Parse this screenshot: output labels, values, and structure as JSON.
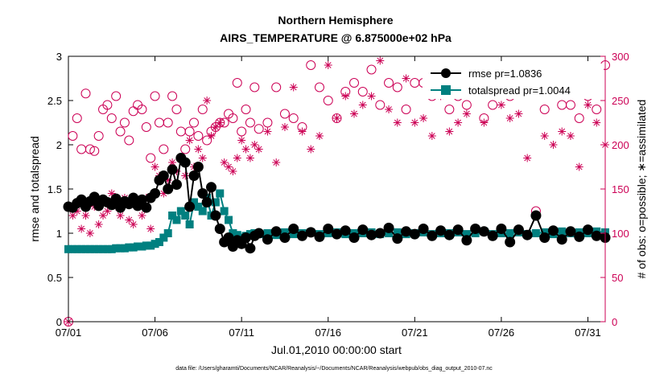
{
  "chart_data": {
    "type": "line",
    "title": "Northern Hemisphere",
    "subtitle": "AIRS_TEMPERATURE @ 6.875000e+02 hPa",
    "xlabel": "Jul.01,2010 00:00:00 start",
    "ylabel": "rmse and totalspread",
    "ylabel_right": "# of obs: o=possible; ∗=assimilated",
    "x_tick_labels": [
      "07/01",
      "07/06",
      "07/11",
      "07/16",
      "07/21",
      "07/26",
      "07/31"
    ],
    "x_ticks_day": [
      1,
      6,
      11,
      16,
      21,
      26,
      31
    ],
    "xlim_day": [
      1,
      32
    ],
    "y_tick_labels": [
      "0",
      "0.5",
      "1",
      "1.5",
      "2",
      "2.5",
      "3"
    ],
    "ylim": [
      0,
      3
    ],
    "y2_tick_labels": [
      "0",
      "50",
      "100",
      "150",
      "200",
      "250",
      "300"
    ],
    "y2lim": [
      0,
      300
    ],
    "grid": false,
    "legend_position": "top-right",
    "colors": {
      "rmse": "#000000",
      "totalspread": "#008080",
      "obs": "#cc0055"
    },
    "series": [
      {
        "name": "rmse pr=1.0836",
        "axis": "left",
        "marker": "filled-circle",
        "x_day": [
          1.0,
          1.25,
          1.5,
          1.75,
          2.0,
          2.25,
          2.5,
          2.75,
          3.0,
          3.25,
          3.5,
          3.75,
          4.0,
          4.25,
          4.5,
          4.75,
          5.0,
          5.25,
          5.5,
          5.75,
          6.0,
          6.25,
          6.5,
          6.75,
          7.0,
          7.25,
          7.5,
          7.75,
          8.0,
          8.25,
          8.5,
          8.75,
          9.0,
          9.25,
          9.5,
          9.75,
          10.0,
          10.25,
          10.5,
          10.75,
          11.0,
          11.25,
          11.5,
          11.75,
          12.0,
          12.5,
          13.0,
          13.5,
          14.0,
          14.5,
          15.0,
          15.5,
          16.0,
          16.5,
          17.0,
          17.5,
          18.0,
          18.5,
          19.0,
          19.5,
          20.0,
          20.5,
          21.0,
          21.5,
          22.0,
          22.5,
          23.0,
          23.5,
          24.0,
          24.5,
          25.0,
          25.5,
          26.0,
          26.5,
          27.0,
          27.5,
          28.0,
          28.5,
          29.0,
          29.5,
          30.0,
          30.5,
          31.0,
          31.5,
          32.0
        ],
        "values": [
          1.3,
          1.29,
          1.34,
          1.38,
          1.3,
          1.36,
          1.41,
          1.31,
          1.38,
          1.35,
          1.32,
          1.39,
          1.29,
          1.36,
          1.33,
          1.4,
          1.31,
          1.38,
          1.29,
          1.4,
          1.45,
          1.6,
          1.65,
          1.5,
          1.72,
          1.55,
          1.85,
          1.8,
          1.3,
          1.65,
          1.75,
          1.45,
          1.35,
          1.52,
          1.2,
          1.05,
          0.9,
          0.95,
          0.85,
          0.92,
          0.88,
          0.95,
          0.83,
          0.97,
          1.0,
          0.93,
          1.02,
          0.95,
          1.05,
          0.97,
          1.01,
          0.96,
          1.05,
          0.99,
          1.03,
          0.95,
          1.04,
          0.98,
          1.0,
          1.06,
          0.94,
          1.02,
          0.99,
          1.05,
          0.97,
          1.03,
          0.98,
          1.04,
          0.92,
          1.05,
          1.02,
          0.97,
          1.05,
          0.9,
          1.04,
          0.98,
          1.2,
          0.95,
          1.03,
          0.93,
          1.02,
          0.96,
          1.04,
          0.97,
          0.95
        ]
      },
      {
        "name": "totalspread pr=1.0044",
        "axis": "left",
        "marker": "filled-square",
        "x_day": [
          1.0,
          1.25,
          1.5,
          1.75,
          2.0,
          2.25,
          2.5,
          2.75,
          3.0,
          3.25,
          3.5,
          3.75,
          4.0,
          4.25,
          4.5,
          4.75,
          5.0,
          5.25,
          5.5,
          5.75,
          6.0,
          6.25,
          6.5,
          6.75,
          7.0,
          7.25,
          7.5,
          7.75,
          8.0,
          8.25,
          8.5,
          8.75,
          9.0,
          9.25,
          9.5,
          9.75,
          10.0,
          10.25,
          10.5,
          10.75,
          11.0,
          11.25,
          11.5,
          11.75,
          12.0,
          12.5,
          13.0,
          13.5,
          14.0,
          14.5,
          15.0,
          15.5,
          16.0,
          16.5,
          17.0,
          17.5,
          18.0,
          18.5,
          19.0,
          19.5,
          20.0,
          20.5,
          21.0,
          21.5,
          22.0,
          22.5,
          23.0,
          23.5,
          24.0,
          24.5,
          25.0,
          25.5,
          26.0,
          26.5,
          27.0,
          27.5,
          28.0,
          28.5,
          29.0,
          29.5,
          30.0,
          30.5,
          31.0,
          31.5,
          32.0
        ],
        "values": [
          0.82,
          0.82,
          0.82,
          0.82,
          0.82,
          0.82,
          0.82,
          0.82,
          0.82,
          0.82,
          0.82,
          0.83,
          0.83,
          0.83,
          0.84,
          0.84,
          0.85,
          0.85,
          0.86,
          0.86,
          0.88,
          0.9,
          0.95,
          1.0,
          1.2,
          1.15,
          1.25,
          1.2,
          1.1,
          1.35,
          1.3,
          1.25,
          1.4,
          1.2,
          1.35,
          1.45,
          1.25,
          1.15,
          1.0,
          0.98,
          0.95,
          0.97,
          0.99,
          1.0,
          0.99,
          1.0,
          0.98,
          1.01,
          0.99,
          1.0,
          1.01,
          0.99,
          1.0,
          1.01,
          0.99,
          1.0,
          1.0,
          1.01,
          0.99,
          1.0,
          1.01,
          0.99,
          1.0,
          1.01,
          0.99,
          1.0,
          1.0,
          1.01,
          0.99,
          1.0,
          1.02,
          0.99,
          1.0,
          1.0,
          1.01,
          0.99,
          1.0,
          1.01,
          0.99,
          1.02,
          1.0,
          1.01,
          1.0,
          1.02,
          1.01
        ]
      },
      {
        "name": "possible",
        "axis": "right",
        "marker": "open-circle",
        "x_day": [
          1.0,
          1.25,
          1.5,
          1.75,
          2.0,
          2.25,
          2.5,
          2.75,
          3.0,
          3.25,
          3.5,
          3.75,
          4.0,
          4.25,
          4.5,
          4.75,
          5.0,
          5.25,
          5.5,
          5.75,
          6.0,
          6.25,
          6.5,
          6.75,
          7.0,
          7.25,
          7.5,
          7.75,
          8.0,
          8.25,
          8.5,
          8.75,
          9.0,
          9.25,
          9.5,
          9.75,
          10.0,
          10.25,
          10.5,
          10.75,
          11.0,
          11.25,
          11.5,
          11.75,
          12.0,
          12.5,
          13.0,
          13.5,
          14.0,
          14.5,
          15.0,
          15.5,
          16.0,
          16.5,
          17.0,
          17.5,
          18.0,
          18.5,
          19.0,
          19.5,
          20.0,
          20.5,
          21.0,
          21.5,
          22.0,
          22.5,
          23.0,
          23.5,
          24.0,
          24.5,
          25.0,
          25.5,
          26.0,
          26.5,
          27.0,
          27.5,
          28.0,
          28.5,
          29.0,
          29.5,
          30.0,
          30.5,
          31.0,
          31.5,
          32.0
        ],
        "values": [
          0,
          210,
          230,
          195,
          258,
          195,
          193,
          210,
          240,
          245,
          230,
          255,
          215,
          225,
          205,
          238,
          245,
          240,
          220,
          185,
          255,
          225,
          195,
          225,
          255,
          240,
          215,
          195,
          215,
          225,
          210,
          240,
          205,
          215,
          220,
          225,
          225,
          235,
          230,
          270,
          215,
          240,
          225,
          265,
          218,
          225,
          265,
          235,
          230,
          220,
          290,
          265,
          250,
          230,
          260,
          270,
          260,
          285,
          245,
          270,
          265,
          240,
          270,
          270,
          255,
          260,
          240,
          255,
          245,
          270,
          230,
          245,
          275,
          255,
          270,
          280,
          125,
          240,
          265,
          245,
          245,
          230,
          255,
          240,
          290
        ]
      },
      {
        "name": "assimilated",
        "axis": "right",
        "marker": "asterisk",
        "x_day": [
          1.0,
          1.25,
          1.5,
          1.75,
          2.0,
          2.25,
          2.5,
          2.75,
          3.0,
          3.25,
          3.5,
          3.75,
          4.0,
          4.25,
          4.5,
          4.75,
          5.0,
          5.25,
          5.5,
          5.75,
          6.0,
          6.25,
          6.5,
          6.75,
          7.0,
          7.25,
          7.5,
          7.75,
          8.0,
          8.25,
          8.5,
          8.75,
          9.0,
          9.25,
          9.5,
          9.75,
          10.0,
          10.25,
          10.5,
          10.75,
          11.0,
          11.25,
          11.5,
          11.75,
          12.0,
          12.5,
          13.0,
          13.5,
          14.0,
          14.5,
          15.0,
          15.5,
          16.0,
          16.5,
          17.0,
          17.5,
          18.0,
          18.5,
          19.0,
          19.5,
          20.0,
          20.5,
          21.0,
          21.5,
          22.0,
          22.5,
          23.0,
          23.5,
          24.0,
          24.5,
          25.0,
          25.5,
          26.0,
          26.5,
          27.0,
          27.5,
          28.0,
          28.5,
          29.0,
          29.5,
          30.0,
          30.5,
          31.0,
          31.5,
          32.0
        ],
        "values": [
          0,
          120,
          125,
          105,
          120,
          100,
          130,
          110,
          120,
          125,
          145,
          130,
          120,
          140,
          115,
          110,
          135,
          120,
          140,
          105,
          175,
          165,
          145,
          160,
          180,
          170,
          185,
          165,
          205,
          175,
          195,
          185,
          250,
          210,
          220,
          225,
          180,
          175,
          170,
          185,
          205,
          195,
          185,
          200,
          195,
          215,
          180,
          220,
          265,
          215,
          195,
          210,
          290,
          230,
          255,
          235,
          245,
          255,
          295,
          240,
          225,
          275,
          225,
          230,
          210,
          255,
          215,
          225,
          235,
          260,
          225,
          280,
          245,
          230,
          235,
          185,
          120,
          210,
          200,
          215,
          210,
          175,
          245,
          225,
          200
        ]
      }
    ]
  },
  "footer": {
    "data_file": "data file: /Users/gharamti/Documents/NCAR/Reanalysis/~/Documents/NCAR/Reanalysis/webpub/obs_diag_output_2010-07.nc"
  }
}
